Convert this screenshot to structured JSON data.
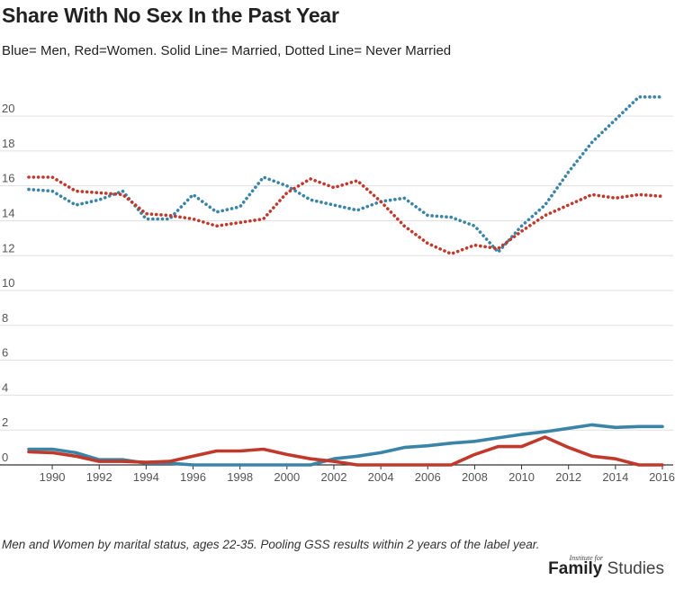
{
  "title": "Share With No Sex In the Past Year",
  "subtitle": "Blue= Men, Red=Women. Solid Line= Married, Dotted Line= Never Married",
  "footnote": "Men and Women by marital status, ages 22-35. Pooling GSS results within 2 years of the label year.",
  "logo": {
    "small": "Institute for",
    "bold": "Family",
    "light": "Studies"
  },
  "chart_data": {
    "type": "line",
    "title": "Share With No Sex In the Past Year",
    "xlim": [
      1989,
      2016
    ],
    "ylim": [
      0,
      21.5
    ],
    "x_ticks": [
      1990,
      1992,
      1994,
      1996,
      1998,
      2000,
      2002,
      2004,
      2006,
      2008,
      2010,
      2012,
      2014,
      2016
    ],
    "y_ticks": [
      0,
      2,
      4,
      6,
      8,
      10,
      12,
      14,
      16,
      18,
      20
    ],
    "grid": true,
    "colors": {
      "men": "#3a84a8",
      "women": "#c0392b",
      "grid": "#e0e0e0",
      "axis": "#333333"
    },
    "x": [
      1989,
      1990,
      1991,
      1992,
      1993,
      1994,
      1995,
      1996,
      1997,
      1998,
      1999,
      2000,
      2001,
      2002,
      2003,
      2004,
      2005,
      2006,
      2007,
      2008,
      2009,
      2010,
      2011,
      2012,
      2013,
      2014,
      2015,
      2016
    ],
    "series": [
      {
        "key": "men_never_married",
        "color": "#3a84a8",
        "style": "dotted",
        "values": [
          15.8,
          15.7,
          14.9,
          15.2,
          15.7,
          14.1,
          14.1,
          15.5,
          14.5,
          14.8,
          16.5,
          16.0,
          15.2,
          14.9,
          14.6,
          15.1,
          15.3,
          14.3,
          14.2,
          13.7,
          12.2,
          13.7,
          14.9,
          16.8,
          18.5,
          19.8,
          21.1,
          21.1
        ]
      },
      {
        "key": "women_never_married",
        "color": "#c0392b",
        "style": "dotted",
        "values": [
          16.5,
          16.5,
          15.7,
          15.6,
          15.5,
          14.4,
          14.3,
          14.1,
          13.7,
          13.9,
          14.1,
          15.6,
          16.4,
          15.9,
          16.3,
          15.1,
          13.7,
          12.7,
          12.1,
          12.6,
          12.4,
          13.4,
          14.3,
          14.9,
          15.5,
          15.3,
          15.5,
          15.4
        ]
      },
      {
        "key": "men_married",
        "color": "#3a84a8",
        "style": "solid",
        "values": [
          0.9,
          0.9,
          0.7,
          0.3,
          0.3,
          0.1,
          0.1,
          0.0,
          0.0,
          0.0,
          0.0,
          0.0,
          0.0,
          0.35,
          0.5,
          0.7,
          1.0,
          1.1,
          1.25,
          1.35,
          1.55,
          1.75,
          1.9,
          2.1,
          2.3,
          2.15,
          2.2,
          2.2
        ]
      },
      {
        "key": "women_married",
        "color": "#c0392b",
        "style": "solid",
        "values": [
          0.75,
          0.7,
          0.5,
          0.2,
          0.2,
          0.15,
          0.2,
          0.5,
          0.8,
          0.8,
          0.9,
          0.6,
          0.35,
          0.2,
          0.0,
          0.0,
          0.0,
          0.0,
          0.0,
          0.6,
          1.05,
          1.05,
          1.6,
          1.0,
          0.5,
          0.35,
          0.0,
          0.0
        ]
      }
    ]
  }
}
